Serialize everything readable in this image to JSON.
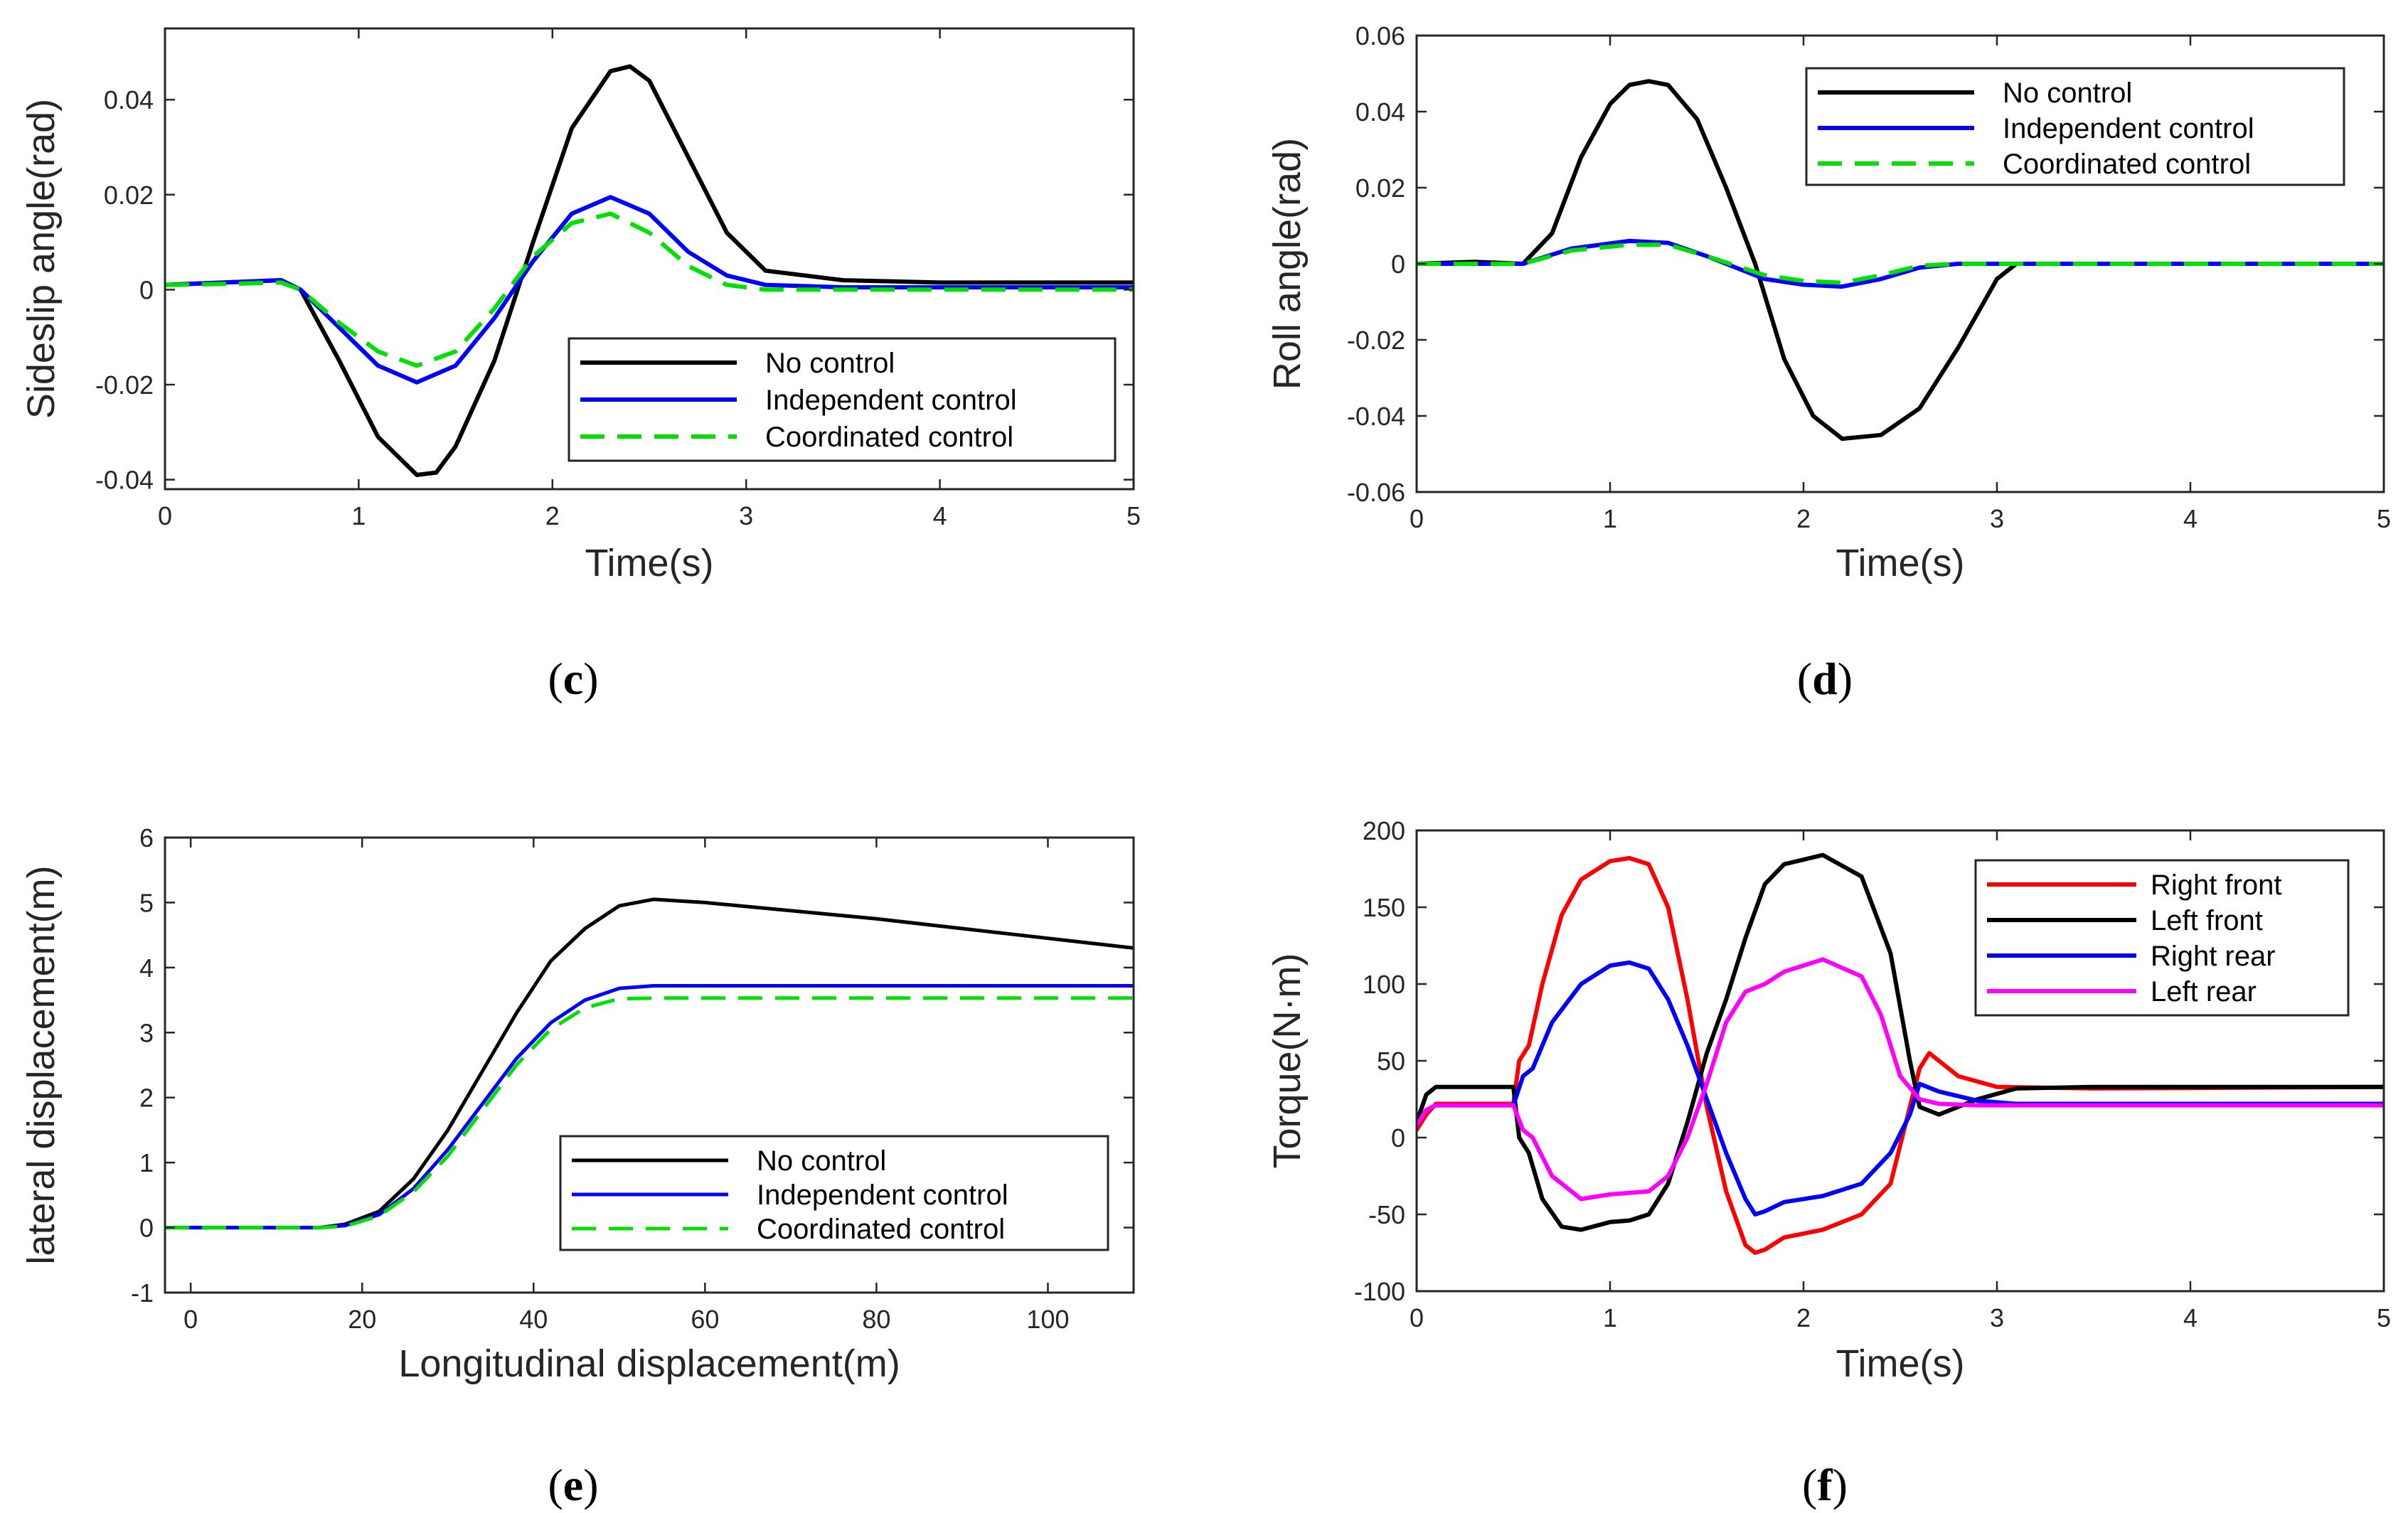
{
  "chart_data": [
    {
      "type": "line",
      "caption_letter": "c",
      "xlabel": "Time(s)",
      "ylabel": "Sideslip angle(rad)",
      "xlim": [
        0,
        5
      ],
      "ylim": [
        -0.042,
        0.055
      ],
      "xticks": [
        0,
        1,
        2,
        3,
        4,
        5
      ],
      "xtick_labels": [
        "0",
        "1",
        "2",
        "3",
        "4",
        "5"
      ],
      "yticks": [
        -0.04,
        -0.02,
        0,
        0.02,
        0.04
      ],
      "ytick_labels": [
        "-0.04",
        "-0.02",
        "0",
        "0.02",
        "0.04"
      ],
      "legend": "bottom-right",
      "grid": false,
      "series": [
        {
          "name": "No control",
          "color": "#000000",
          "dash": "solid",
          "width": 3,
          "x": [
            0,
            0.3,
            0.6,
            0.7,
            0.9,
            1.1,
            1.3,
            1.4,
            1.5,
            1.7,
            1.9,
            2.1,
            2.3,
            2.4,
            2.5,
            2.7,
            2.9,
            3.1,
            3.5,
            4,
            5
          ],
          "y": [
            0.001,
            0.0015,
            0.002,
            0.0,
            -0.015,
            -0.031,
            -0.039,
            -0.0385,
            -0.033,
            -0.015,
            0.01,
            0.034,
            0.046,
            0.047,
            0.044,
            0.028,
            0.012,
            0.004,
            0.002,
            0.0015,
            0.0015
          ]
        },
        {
          "name": "Independent control",
          "color": "#0000ff",
          "dash": "solid",
          "width": 3,
          "x": [
            0,
            0.3,
            0.6,
            0.7,
            0.9,
            1.1,
            1.3,
            1.5,
            1.7,
            1.9,
            2.1,
            2.3,
            2.5,
            2.7,
            2.9,
            3.1,
            3.5,
            4,
            5
          ],
          "y": [
            0.001,
            0.0015,
            0.002,
            0.0,
            -0.008,
            -0.016,
            -0.0195,
            -0.016,
            -0.006,
            0.006,
            0.016,
            0.0195,
            0.016,
            0.008,
            0.003,
            0.001,
            0.0005,
            0.0005,
            0.0005
          ]
        },
        {
          "name": "Coordinated control",
          "color": "#00e000",
          "dash": "dashed",
          "width": 3,
          "x": [
            0,
            0.3,
            0.6,
            0.7,
            0.9,
            1.1,
            1.3,
            1.5,
            1.7,
            1.9,
            2.1,
            2.3,
            2.5,
            2.7,
            2.9,
            3.1,
            3.5,
            4,
            5
          ],
          "y": [
            0.001,
            0.0012,
            0.0015,
            0.0,
            -0.007,
            -0.013,
            -0.016,
            -0.013,
            -0.004,
            0.007,
            0.014,
            0.016,
            0.012,
            0.005,
            0.001,
            0.0,
            0.0,
            0.0,
            0.0
          ]
        }
      ]
    },
    {
      "type": "line",
      "caption_letter": "d",
      "xlabel": "Time(s)",
      "ylabel": "Roll angle(rad)",
      "xlim": [
        0,
        5
      ],
      "ylim": [
        -0.06,
        0.06
      ],
      "xticks": [
        0,
        1,
        2,
        3,
        4,
        5
      ],
      "xtick_labels": [
        "0",
        "1",
        "2",
        "3",
        "4",
        "5"
      ],
      "yticks": [
        -0.06,
        -0.04,
        -0.02,
        0,
        0.02,
        0.04,
        0.06
      ],
      "ytick_labels": [
        "-0.06",
        "-0.04",
        "-0.02",
        "0",
        "0.02",
        "0.04",
        "0.06"
      ],
      "legend": "top-right",
      "grid": false,
      "series": [
        {
          "name": "No control",
          "color": "#000000",
          "dash": "solid",
          "width": 3,
          "x": [
            0,
            0.3,
            0.55,
            0.7,
            0.85,
            1.0,
            1.1,
            1.2,
            1.3,
            1.45,
            1.6,
            1.75,
            1.9,
            2.05,
            2.2,
            2.4,
            2.6,
            2.8,
            3.0,
            3.1,
            3.5,
            5
          ],
          "y": [
            0.0,
            0.0005,
            0.0,
            0.008,
            0.028,
            0.042,
            0.047,
            0.048,
            0.047,
            0.038,
            0.02,
            0.0,
            -0.025,
            -0.04,
            -0.046,
            -0.045,
            -0.038,
            -0.022,
            -0.004,
            0.0,
            0.0,
            0.0
          ]
        },
        {
          "name": "Independent control",
          "color": "#0000ff",
          "dash": "solid",
          "width": 3,
          "x": [
            0,
            0.55,
            0.8,
            1.1,
            1.3,
            1.5,
            1.8,
            2.0,
            2.2,
            2.4,
            2.6,
            2.8,
            3.0,
            3.5,
            5
          ],
          "y": [
            0.0,
            0.0,
            0.004,
            0.006,
            0.0055,
            0.002,
            -0.004,
            -0.0055,
            -0.006,
            -0.004,
            -0.001,
            0.0,
            0.0,
            0.0,
            0.0
          ]
        },
        {
          "name": "Coordinated control",
          "color": "#00e000",
          "dash": "dashed",
          "width": 3,
          "x": [
            0,
            0.55,
            0.8,
            1.1,
            1.3,
            1.5,
            1.8,
            2.0,
            2.2,
            2.4,
            2.6,
            2.8,
            3.0,
            3.5,
            5
          ],
          "y": [
            0.0,
            0.0,
            0.0035,
            0.005,
            0.005,
            0.002,
            -0.003,
            -0.0045,
            -0.005,
            -0.003,
            -0.0005,
            0.0,
            0.0,
            0.0,
            0.0
          ]
        }
      ]
    },
    {
      "type": "line",
      "caption_letter": "e",
      "xlabel": "Longitudinal displacement(m)",
      "ylabel": "lateral displacement(m)",
      "xlim": [
        -3,
        110
      ],
      "ylim": [
        -1,
        6
      ],
      "xticks": [
        0,
        20,
        40,
        60,
        80,
        100
      ],
      "xtick_labels": [
        "0",
        "20",
        "40",
        "60",
        "80",
        "100"
      ],
      "yticks": [
        -1,
        0,
        1,
        2,
        3,
        4,
        5,
        6
      ],
      "ytick_labels": [
        "-1",
        "0",
        "1",
        "2",
        "3",
        "4",
        "5",
        "6"
      ],
      "legend": "bottom-right",
      "grid": false,
      "series": [
        {
          "name": "No control",
          "color": "#000000",
          "dash": "solid",
          "width": 2.5,
          "x": [
            -3,
            15,
            18,
            22,
            26,
            30,
            34,
            38,
            42,
            46,
            50,
            54,
            60,
            80,
            100,
            110
          ],
          "y": [
            0,
            0,
            0.05,
            0.25,
            0.75,
            1.5,
            2.4,
            3.3,
            4.1,
            4.6,
            4.95,
            5.05,
            5.0,
            4.75,
            4.45,
            4.3
          ]
        },
        {
          "name": "Independent control",
          "color": "#0000ff",
          "dash": "solid",
          "width": 2.5,
          "x": [
            -3,
            15,
            18,
            22,
            26,
            30,
            34,
            38,
            42,
            46,
            50,
            54,
            60,
            80,
            100,
            110
          ],
          "y": [
            0,
            0,
            0.03,
            0.2,
            0.6,
            1.2,
            1.9,
            2.6,
            3.15,
            3.5,
            3.68,
            3.72,
            3.72,
            3.72,
            3.72,
            3.72
          ]
        },
        {
          "name": "Coordinated control",
          "color": "#00e000",
          "dash": "dashed",
          "width": 2.5,
          "x": [
            -3,
            15,
            18,
            22,
            26,
            30,
            34,
            38,
            42,
            46,
            50,
            54,
            60,
            80,
            100,
            110
          ],
          "y": [
            0,
            0,
            0.02,
            0.18,
            0.55,
            1.1,
            1.8,
            2.5,
            3.05,
            3.38,
            3.52,
            3.53,
            3.53,
            3.53,
            3.53,
            3.53
          ]
        }
      ]
    },
    {
      "type": "line",
      "caption_letter": "f",
      "xlabel": "Time(s)",
      "ylabel": "Torque(N·m)",
      "xlim": [
        0,
        5
      ],
      "ylim": [
        -100,
        200
      ],
      "xticks": [
        0,
        1,
        2,
        3,
        4,
        5
      ],
      "xtick_labels": [
        "0",
        "1",
        "2",
        "3",
        "4",
        "5"
      ],
      "yticks": [
        -100,
        -50,
        0,
        50,
        100,
        150,
        200
      ],
      "ytick_labels": [
        "-100",
        "-50",
        "0",
        "50",
        "100",
        "150",
        "200"
      ],
      "legend": "top-right",
      "grid": false,
      "series": [
        {
          "name": "Right front",
          "color": "#ff0000",
          "dash": "solid",
          "width": 3,
          "x": [
            0,
            0.05,
            0.1,
            0.3,
            0.5,
            0.53,
            0.58,
            0.65,
            0.75,
            0.85,
            1.0,
            1.1,
            1.2,
            1.3,
            1.4,
            1.5,
            1.6,
            1.7,
            1.75,
            1.8,
            1.9,
            2.1,
            2.3,
            2.45,
            2.55,
            2.6,
            2.65,
            2.8,
            3.0,
            3.5,
            5
          ],
          "y": [
            5,
            15,
            22,
            22,
            22,
            50,
            60,
            100,
            145,
            168,
            180,
            182,
            178,
            150,
            90,
            20,
            -35,
            -70,
            -75,
            -73,
            -65,
            -60,
            -50,
            -30,
            20,
            45,
            55,
            40,
            33,
            32,
            33
          ]
        },
        {
          "name": "Left front",
          "color": "#000000",
          "dash": "solid",
          "width": 3,
          "x": [
            0,
            0.05,
            0.1,
            0.3,
            0.5,
            0.53,
            0.58,
            0.65,
            0.75,
            0.85,
            1.0,
            1.1,
            1.2,
            1.3,
            1.4,
            1.5,
            1.6,
            1.7,
            1.8,
            1.9,
            2.1,
            2.3,
            2.45,
            2.55,
            2.6,
            2.7,
            2.9,
            3.1,
            3.5,
            5
          ],
          "y": [
            10,
            28,
            33,
            33,
            33,
            0,
            -10,
            -40,
            -58,
            -60,
            -55,
            -54,
            -50,
            -30,
            10,
            55,
            90,
            130,
            165,
            178,
            184,
            170,
            120,
            50,
            20,
            15,
            25,
            32,
            33,
            33
          ]
        },
        {
          "name": "Right rear",
          "color": "#0000ff",
          "dash": "solid",
          "width": 3,
          "x": [
            0,
            0.05,
            0.1,
            0.3,
            0.5,
            0.55,
            0.6,
            0.7,
            0.85,
            1.0,
            1.1,
            1.2,
            1.3,
            1.4,
            1.5,
            1.6,
            1.7,
            1.75,
            1.8,
            1.9,
            2.1,
            2.3,
            2.45,
            2.55,
            2.6,
            2.7,
            2.9,
            3.1,
            5
          ],
          "y": [
            8,
            18,
            21,
            21,
            21,
            40,
            45,
            75,
            100,
            112,
            114,
            110,
            90,
            60,
            25,
            -10,
            -40,
            -50,
            -48,
            -42,
            -38,
            -30,
            -10,
            15,
            35,
            30,
            24,
            22,
            22
          ]
        },
        {
          "name": "Left rear",
          "color": "#ff00ff",
          "dash": "solid",
          "width": 3,
          "x": [
            0,
            0.05,
            0.1,
            0.3,
            0.5,
            0.55,
            0.6,
            0.7,
            0.85,
            1.0,
            1.1,
            1.2,
            1.3,
            1.4,
            1.5,
            1.6,
            1.7,
            1.8,
            1.9,
            2.1,
            2.3,
            2.4,
            2.5,
            2.6,
            2.7,
            2.9,
            3.1,
            5
          ],
          "y": [
            8,
            18,
            21,
            21,
            21,
            5,
            0,
            -25,
            -40,
            -37,
            -36,
            -35,
            -25,
            0,
            35,
            75,
            95,
            100,
            108,
            116,
            105,
            80,
            40,
            25,
            22,
            21,
            21,
            21
          ]
        }
      ]
    }
  ]
}
